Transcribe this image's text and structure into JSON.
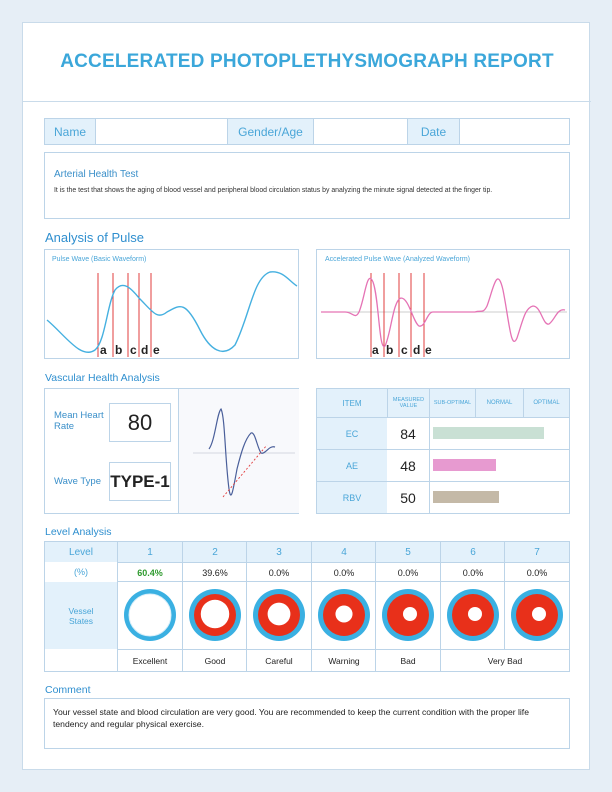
{
  "title": "ACCELERATED PHOTOPLETHYSMOGRAPH REPORT",
  "patient": {
    "name_label": "Name",
    "gender_age_label": "Gender/Age",
    "date_label": "Date"
  },
  "arterial": {
    "heading": "Arterial Health Test",
    "description": "It is the test that shows the aging of blood vessel and peripheral blood circulation status by analyzing the minute signal detected at the finger tip."
  },
  "analysis": {
    "heading": "Analysis of Pulse",
    "pulse_wave_title": "Pulse Wave (Basic Waveform)",
    "accel_wave_title": "Accelerated Pulse Wave (Analyzed Waveform)",
    "markers": [
      "a",
      "b",
      "c",
      "d",
      "e"
    ]
  },
  "vascular": {
    "heading": "Vascular Health Analysis",
    "mean_hr_label": "Mean Heart Rate",
    "mean_hr_value": "80",
    "wave_type_label": "Wave Type",
    "wave_type_value": "TYPE-1",
    "table_headers": [
      "ITEM",
      "MEASURED VALUE",
      "SUB-OPTIMAL",
      "NORMAL",
      "OPTIMAL"
    ],
    "rows": [
      {
        "item": "EC",
        "value": "84",
        "level": 0.84,
        "color": "#c9e0d4"
      },
      {
        "item": "AE",
        "value": "48",
        "level": 0.48,
        "color": "#e79ad0"
      },
      {
        "item": "RBV",
        "value": "50",
        "level": 0.5,
        "color": "#c4b9a7"
      }
    ]
  },
  "level": {
    "heading": "Level Analysis",
    "level_label": "Level",
    "percent_label": "(%)",
    "vessel_label": "Vessel States",
    "levels": [
      "1",
      "2",
      "3",
      "4",
      "5",
      "6",
      "7"
    ],
    "percents": [
      "60.4%",
      "39.6%",
      "0.0%",
      "0.0%",
      "0.0%",
      "0.0%",
      "0.0%"
    ],
    "states": [
      "Excellent",
      "Good",
      "Careful",
      "Warning",
      "Bad",
      "Very Bad"
    ],
    "highlight_color": "#2e9a2e"
  },
  "comment": {
    "heading": "Comment",
    "text": "Your vessel state and blood circulation are very good. You are recommended to keep the current condition with the proper life tendency and regular physical exercise."
  }
}
